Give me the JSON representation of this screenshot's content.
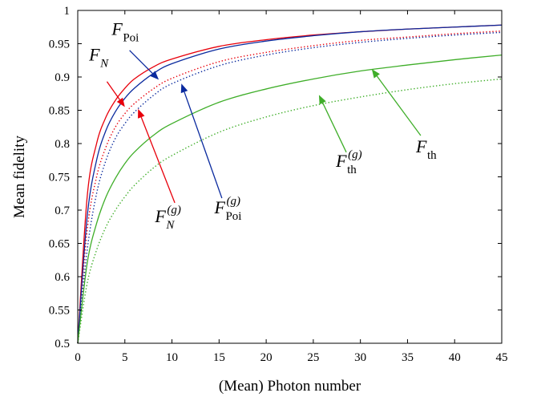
{
  "chart_data": {
    "type": "line",
    "xlabel": "(Mean) Photon number",
    "ylabel": "Mean fidelity",
    "xlim": [
      0,
      45
    ],
    "ylim": [
      0.5,
      1
    ],
    "xticks": [
      "0",
      "5",
      "10",
      "15",
      "20",
      "25",
      "30",
      "35",
      "40",
      "45"
    ],
    "yticks": [
      "0.5",
      "0.55",
      "0.6",
      "0.65",
      "0.7",
      "0.75",
      "0.8",
      "0.85",
      "0.9",
      "0.95",
      "1"
    ],
    "grid": false,
    "legend": "none",
    "series": [
      {
        "id": "F_N",
        "color": "#e8000b",
        "style": "solid",
        "x": [
          0,
          1,
          2,
          3,
          4,
          5,
          6,
          8,
          10,
          15,
          20,
          25,
          30,
          35,
          40,
          45
        ],
        "y": [
          0.5,
          0.72,
          0.8,
          0.84,
          0.865,
          0.883,
          0.897,
          0.915,
          0.927,
          0.946,
          0.956,
          0.963,
          0.968,
          0.972,
          0.975,
          0.978
        ]
      },
      {
        "id": "F_N_g",
        "color": "#e8000b",
        "style": "dotted",
        "x": [
          0,
          1,
          2,
          3,
          4,
          5,
          6,
          8,
          10,
          15,
          20,
          25,
          30,
          35,
          40,
          45
        ],
        "y": [
          0.5,
          0.67,
          0.75,
          0.795,
          0.825,
          0.845,
          0.86,
          0.882,
          0.898,
          0.923,
          0.937,
          0.947,
          0.955,
          0.96,
          0.965,
          0.969
        ]
      },
      {
        "id": "F_Poi",
        "color": "#0a2a9e",
        "style": "solid",
        "x": [
          0,
          1,
          2,
          3,
          4,
          5,
          6,
          8,
          10,
          15,
          20,
          25,
          30,
          35,
          40,
          45
        ],
        "y": [
          0.5,
          0.69,
          0.775,
          0.82,
          0.848,
          0.868,
          0.883,
          0.905,
          0.92,
          0.942,
          0.954,
          0.962,
          0.968,
          0.972,
          0.975,
          0.978
        ]
      },
      {
        "id": "F_Poi_g",
        "color": "#0a2a9e",
        "style": "dotted",
        "x": [
          0,
          1,
          2,
          3,
          4,
          5,
          6,
          8,
          10,
          15,
          20,
          25,
          30,
          35,
          40,
          45
        ],
        "y": [
          0.5,
          0.64,
          0.725,
          0.775,
          0.808,
          0.83,
          0.847,
          0.872,
          0.89,
          0.917,
          0.933,
          0.944,
          0.952,
          0.958,
          0.963,
          0.967
        ]
      },
      {
        "id": "F_th",
        "color": "#3fae29",
        "style": "solid",
        "x": [
          0,
          1,
          2,
          3,
          4,
          5,
          6,
          8,
          10,
          15,
          20,
          25,
          30,
          35,
          40,
          45
        ],
        "y": [
          0.5,
          0.62,
          0.68,
          0.72,
          0.748,
          0.77,
          0.787,
          0.812,
          0.83,
          0.862,
          0.882,
          0.897,
          0.909,
          0.918,
          0.926,
          0.933
        ]
      },
      {
        "id": "F_th_g",
        "color": "#3fae29",
        "style": "dotted",
        "x": [
          0,
          1,
          2,
          3,
          4,
          5,
          6,
          8,
          10,
          15,
          20,
          25,
          30,
          35,
          40,
          45
        ],
        "y": [
          0.5,
          0.59,
          0.64,
          0.675,
          0.7,
          0.72,
          0.737,
          0.763,
          0.782,
          0.817,
          0.84,
          0.857,
          0.87,
          0.881,
          0.89,
          0.897
        ]
      }
    ],
    "annotations": [
      {
        "id": "ann-f-n",
        "main": "F",
        "sub": "N",
        "sup": "",
        "color": "#e8000b",
        "label_at": [
          1.2,
          0.925
        ],
        "arrow_from": [
          3.1,
          0.893
        ],
        "arrow_to": [
          5.0,
          0.855
        ]
      },
      {
        "id": "ann-f-poi",
        "main": "F",
        "sub": "Poi",
        "sup": "",
        "color": "#0a2a9e",
        "label_at": [
          3.6,
          0.963
        ],
        "arrow_from": [
          5.5,
          0.94
        ],
        "arrow_to": [
          8.6,
          0.896
        ]
      },
      {
        "id": "ann-f-n-g",
        "main": "F",
        "sub": "N",
        "sup": "(g)",
        "color": "#e8000b",
        "label_at": [
          8.2,
          0.682
        ],
        "arrow_from": [
          10.3,
          0.711
        ],
        "arrow_to": [
          6.4,
          0.852
        ]
      },
      {
        "id": "ann-f-poi-g",
        "main": "F",
        "sub": "Poi",
        "sup": "(g)",
        "color": "#0a2a9e",
        "label_at": [
          14.5,
          0.695
        ],
        "arrow_from": [
          15.3,
          0.718
        ],
        "arrow_to": [
          11.0,
          0.89
        ]
      },
      {
        "id": "ann-f-th-g",
        "main": "F",
        "sub": "th",
        "sup": "(g)",
        "color": "#3fae29",
        "label_at": [
          27.4,
          0.765
        ],
        "arrow_from": [
          28.5,
          0.787
        ],
        "arrow_to": [
          25.6,
          0.873
        ]
      },
      {
        "id": "ann-f-th",
        "main": "F",
        "sub": "th",
        "sup": "",
        "color": "#3fae29",
        "label_at": [
          35.9,
          0.787
        ],
        "arrow_from": [
          36.4,
          0.812
        ],
        "arrow_to": [
          31.2,
          0.912
        ]
      }
    ]
  }
}
